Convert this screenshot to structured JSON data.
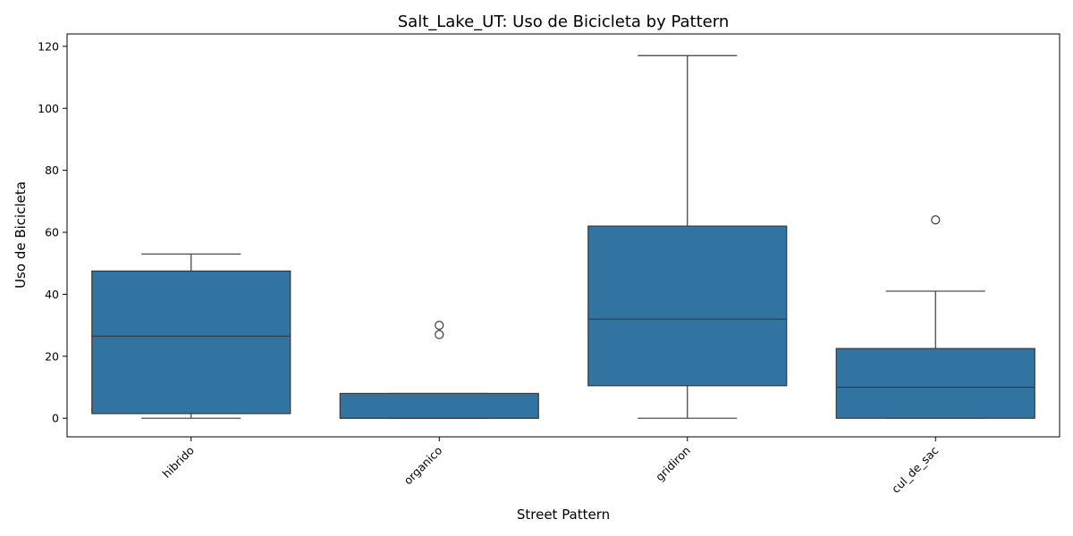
{
  "chart_data": {
    "type": "box",
    "title": "Salt_Lake_UT: Uso de Bicicleta by Pattern",
    "xlabel": "Street Pattern",
    "ylabel": "Uso de Bicicleta",
    "ylim": [
      -6,
      124
    ],
    "yticks": [
      0,
      20,
      40,
      60,
      80,
      100,
      120
    ],
    "ytick_labels": [
      "0",
      "20",
      "40",
      "60",
      "80",
      "100",
      "120"
    ],
    "categories": [
      "hibrido",
      "organico",
      "gridiron",
      "cul_de_sac"
    ],
    "boxes": [
      {
        "category": "hibrido",
        "whisker_low": 0,
        "q1": 1.5,
        "median": 26.5,
        "q3": 47.5,
        "whisker_high": 53,
        "outliers": []
      },
      {
        "category": "organico",
        "whisker_low": 0,
        "q1": 0,
        "median": 0,
        "q3": 8,
        "whisker_high": 8,
        "outliers": [
          27,
          30
        ]
      },
      {
        "category": "gridiron",
        "whisker_low": 0,
        "q1": 10.5,
        "median": 32,
        "q3": 62,
        "whisker_high": 117,
        "outliers": []
      },
      {
        "category": "cul_de_sac",
        "whisker_low": 0,
        "q1": 0,
        "median": 10,
        "q3": 22.5,
        "whisker_high": 41,
        "outliers": [
          64
        ]
      }
    ],
    "color": "#3274a1",
    "grid": false,
    "legend": "none"
  }
}
